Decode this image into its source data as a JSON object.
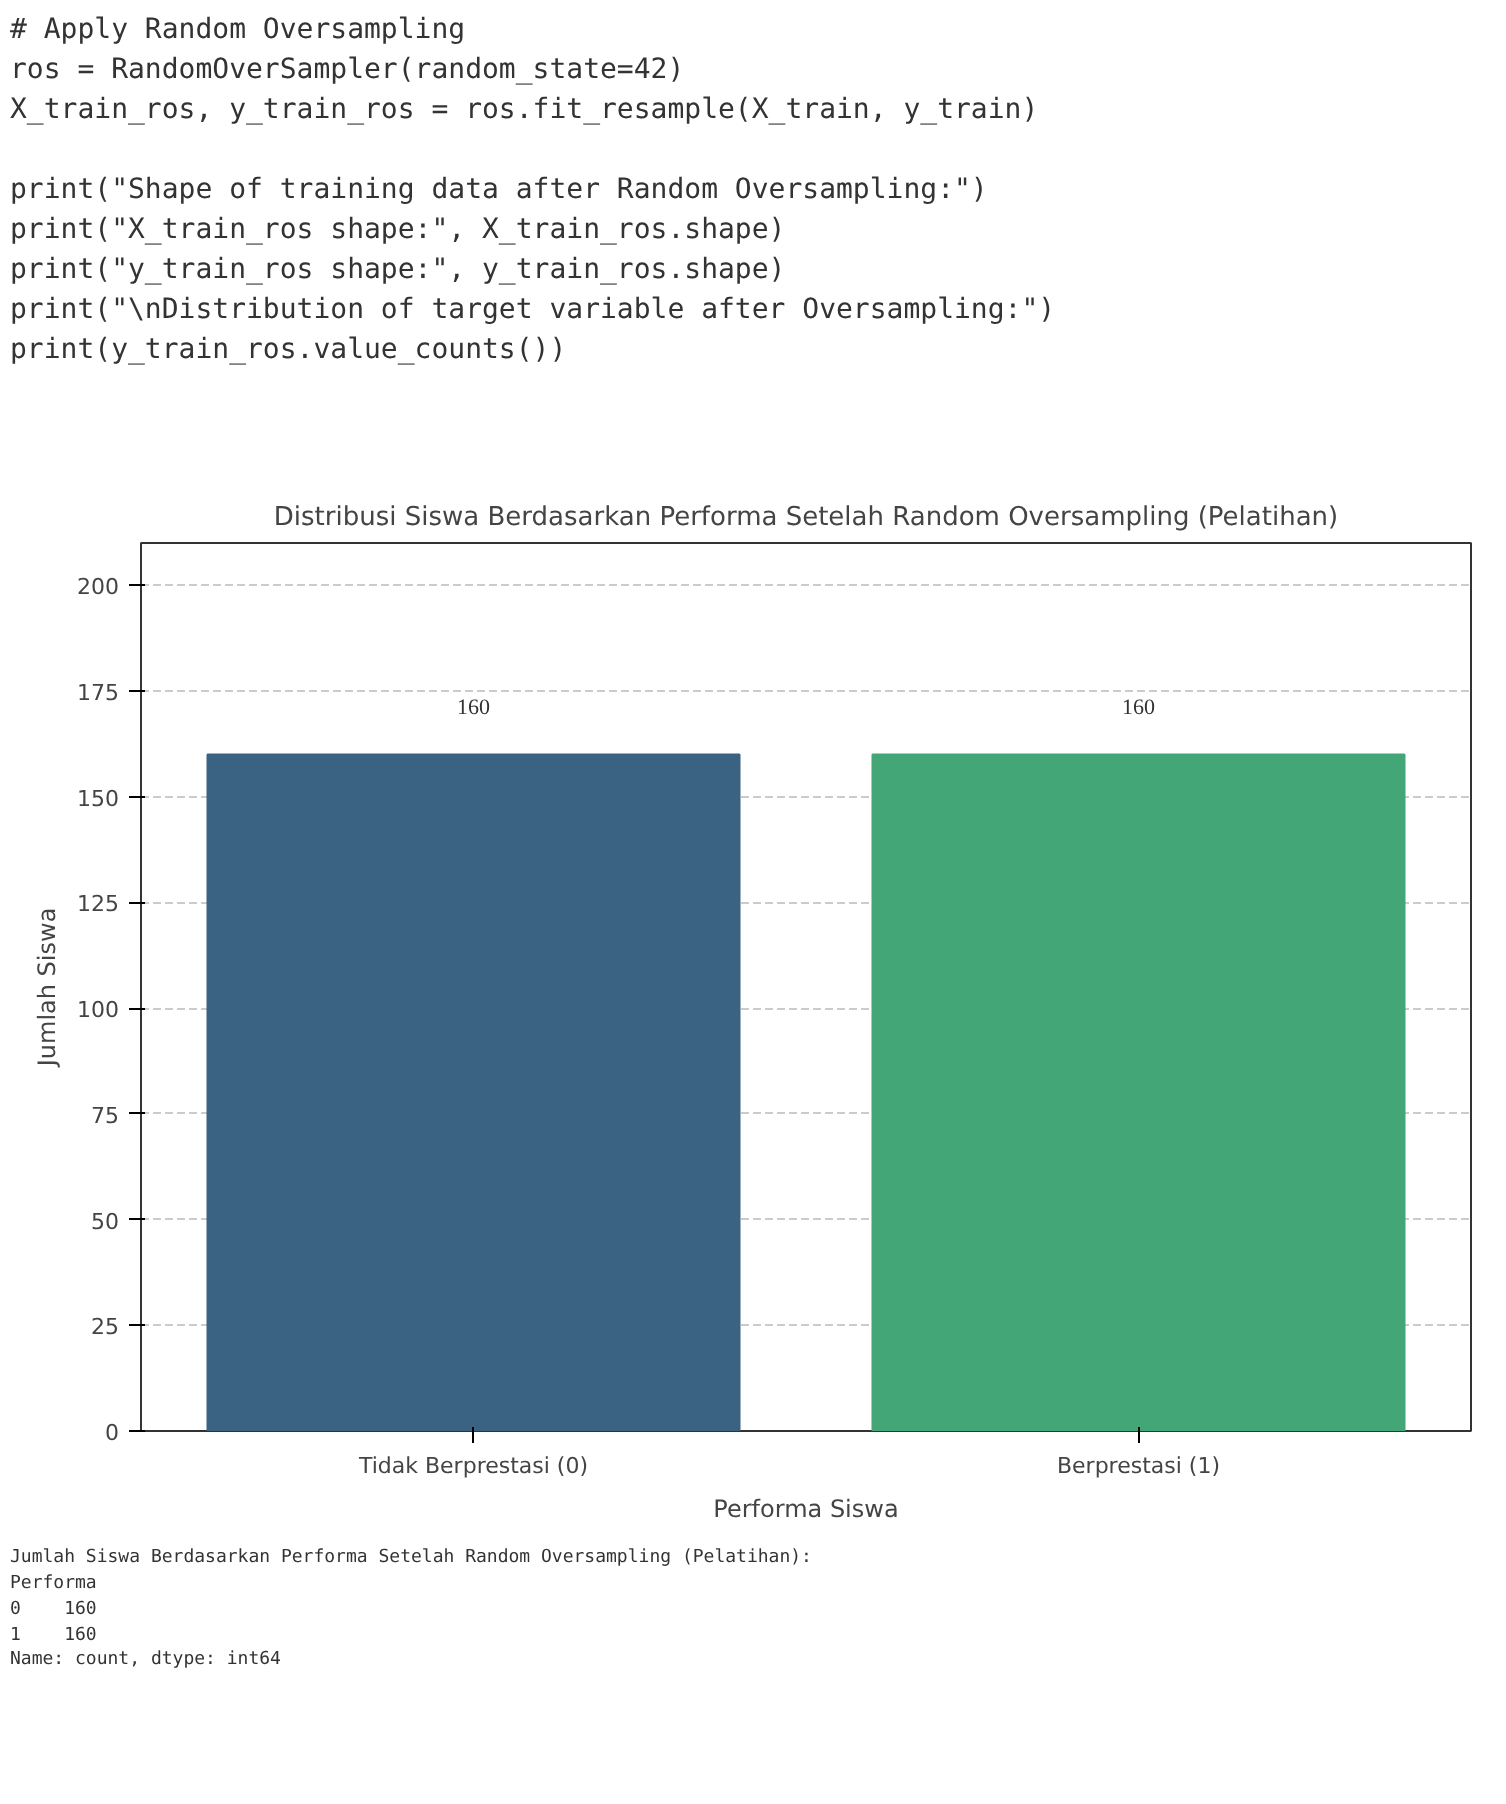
{
  "chart_data": {
    "type": "bar",
    "title": "Distribusi Siswa Berdasarkan Performa Setelah Random Oversampling (Pelatihan)",
    "categories": [
      "Tidak Berprestasi (0)",
      "Berprestasi (1)"
    ],
    "values": [
      160,
      160
    ],
    "colors": [
      "#3a6282",
      "#42a676"
    ],
    "xlabel": "Performa Siswa",
    "ylabel": "Jumlah Siswa",
    "ylim": [
      0,
      210
    ],
    "yticks": [
      0,
      25,
      50,
      75,
      100,
      125,
      150,
      175,
      200
    ],
    "grid": "y",
    "data_labels": true,
    "annotations": [
      "# Apply Random Oversampling\nros = RandomOverSampler(random_state=42)\nX_train_ros, y_train_ros = ros.fit_resample(X_train, y_train)\n\nprint(\"Shape of training data after Random Oversampling:\")\nprint(\"X_train_ros shape:\", X_train_ros.shape)\nprint(\"y_train_ros shape:\", y_train_ros.shape)\nprint(\"\\nDistribution of target variable after Oversampling:\")\nprint(y_train_ros.value_counts())",
      "Jumlah Siswa Berdasarkan Performa Setelah Random Oversampling (Pelatihan):\nPerforma\n0    160\n1    160\nName: count, dtype: int64"
    ]
  }
}
